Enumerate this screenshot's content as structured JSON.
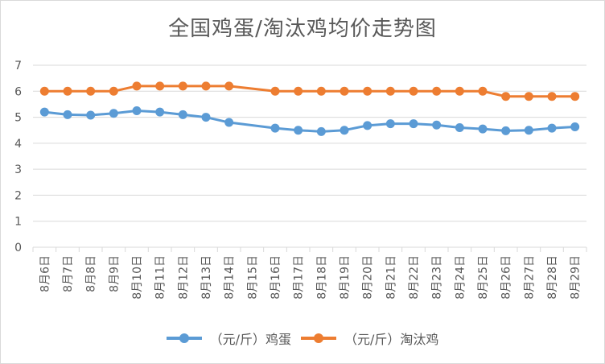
{
  "chart_data": {
    "type": "line",
    "title": "全国鸡蛋/淘汰鸡均价走势图",
    "xlabel": "",
    "ylabel": "",
    "ylim": [
      0,
      7
    ],
    "yticks": [
      0,
      1,
      2,
      3,
      4,
      5,
      6,
      7
    ],
    "grid": true,
    "legend_position": "bottom",
    "categories": [
      "8月6日",
      "8月7日",
      "8月8日",
      "8月9日",
      "8月10日",
      "8月11日",
      "8月12日",
      "8月13日",
      "8月14日",
      "8月15日",
      "8月16日",
      "8月17日",
      "8月18日",
      "8月19日",
      "8月20日",
      "8月21日",
      "8月22日",
      "8月23日",
      "8月24日",
      "8月25日",
      "8月26日",
      "8月27日",
      "8月28日",
      "8月29日"
    ],
    "series": [
      {
        "name": "（元/斤）鸡蛋",
        "color": "#5b9bd5",
        "values": [
          5.2,
          5.1,
          5.08,
          5.15,
          5.25,
          5.2,
          5.1,
          5.0,
          4.8,
          null,
          4.58,
          4.5,
          4.45,
          4.5,
          4.68,
          4.75,
          4.75,
          4.7,
          4.6,
          4.55,
          4.48,
          4.5,
          4.58,
          4.63
        ]
      },
      {
        "name": "（元/斤）淘汰鸡",
        "color": "#ed7d31",
        "values": [
          6.0,
          6.0,
          6.0,
          6.0,
          6.2,
          6.2,
          6.2,
          6.2,
          6.2,
          null,
          6.0,
          6.0,
          6.0,
          6.0,
          6.0,
          6.0,
          6.0,
          6.0,
          6.0,
          6.0,
          5.8,
          5.8,
          5.8,
          5.8
        ]
      }
    ]
  }
}
